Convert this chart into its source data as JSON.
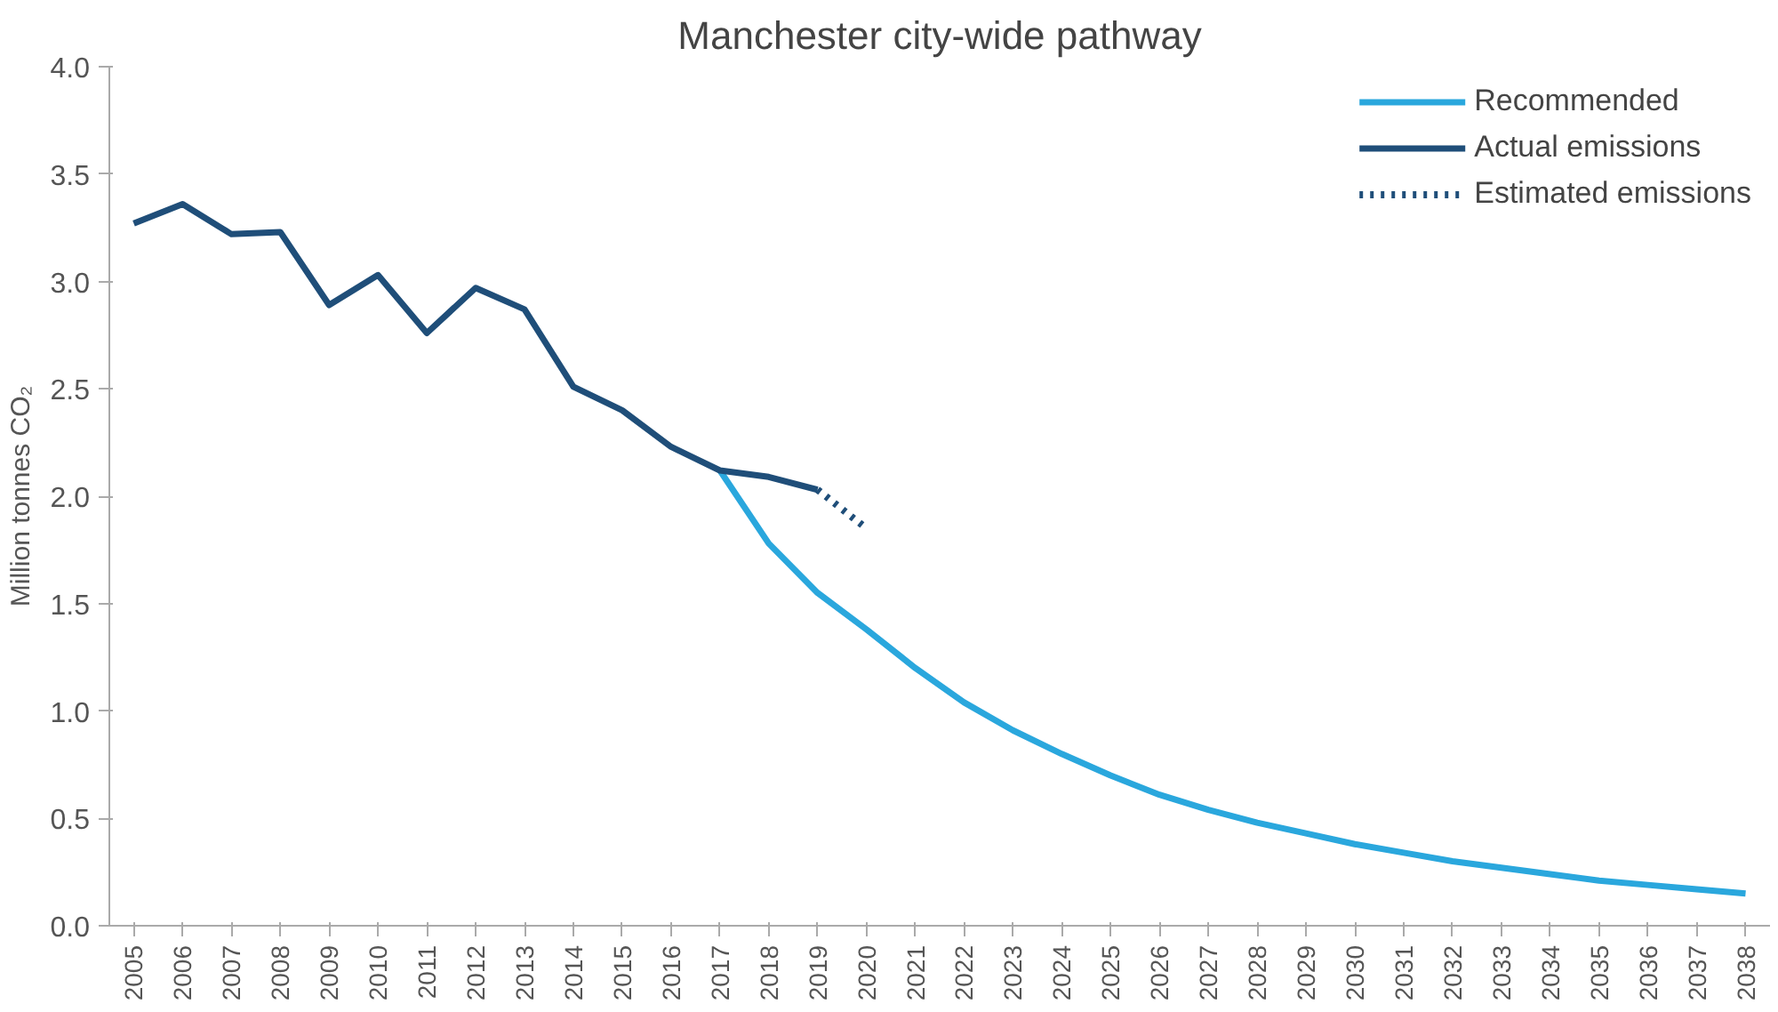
{
  "chart_data": {
    "type": "line",
    "title": "Manchester city-wide pathway",
    "ylabel": "Million tonnes CO₂",
    "categories": [
      "2005",
      "2006",
      "2007",
      "2008",
      "2009",
      "2010",
      "2011",
      "2012",
      "2013",
      "2014",
      "2015",
      "2016",
      "2017",
      "2018",
      "2019",
      "2020",
      "2021",
      "2022",
      "2023",
      "2024",
      "2025",
      "2026",
      "2027",
      "2028",
      "2029",
      "2030",
      "2031",
      "2032",
      "2033",
      "2034",
      "2035",
      "2036",
      "2037",
      "2038"
    ],
    "series": [
      {
        "name": "Recommended",
        "color": "#2aa7dd",
        "line_style": "solid",
        "values": [
          null,
          null,
          null,
          null,
          null,
          null,
          null,
          null,
          null,
          null,
          null,
          null,
          2.12,
          1.78,
          1.55,
          1.38,
          1.2,
          1.04,
          0.91,
          0.8,
          0.7,
          0.61,
          0.54,
          0.48,
          0.43,
          0.38,
          0.34,
          0.3,
          0.27,
          0.24,
          0.21,
          0.19,
          0.17,
          0.15
        ]
      },
      {
        "name": "Actual emissions",
        "color": "#1f4e79",
        "line_style": "solid",
        "values": [
          3.27,
          3.36,
          3.22,
          3.23,
          2.89,
          3.03,
          2.76,
          2.97,
          2.87,
          2.51,
          2.4,
          2.23,
          2.12,
          2.09,
          2.03,
          null,
          null,
          null,
          null,
          null,
          null,
          null,
          null,
          null,
          null,
          null,
          null,
          null,
          null,
          null,
          null,
          null,
          null,
          null
        ]
      },
      {
        "name": "Estimated emissions",
        "color": "#1f4e79",
        "line_style": "dotted",
        "values": [
          null,
          null,
          null,
          null,
          null,
          null,
          null,
          null,
          null,
          null,
          null,
          null,
          null,
          null,
          2.03,
          1.85,
          null,
          null,
          null,
          null,
          null,
          null,
          null,
          null,
          null,
          null,
          null,
          null,
          null,
          null,
          null,
          null,
          null,
          null
        ]
      }
    ],
    "ylim": [
      0,
      4
    ],
    "yticks": [
      {
        "value": 0,
        "label": "0.0"
      },
      {
        "value": 0.5,
        "label": "0.5"
      },
      {
        "value": 1,
        "label": "1.0"
      },
      {
        "value": 1.5,
        "label": "1.5"
      },
      {
        "value": 2,
        "label": "2.0"
      },
      {
        "value": 2.5,
        "label": "2.5"
      },
      {
        "value": 3,
        "label": "3.0"
      },
      {
        "value": 3.5,
        "label": "3.5"
      },
      {
        "value": 4,
        "label": "4.0"
      }
    ],
    "grid": false,
    "legend": "top right",
    "marker": "none"
  }
}
